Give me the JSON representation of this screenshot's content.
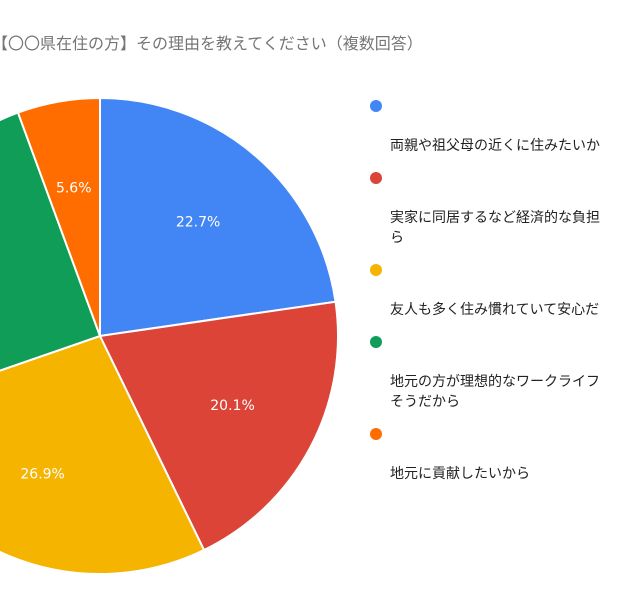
{
  "chart_data": {
    "type": "pie",
    "title": "【〇〇県在住の方】その理由を教えてください（複数回答）",
    "slices": [
      {
        "name": "両親や祖父母の近くに住みたいから",
        "value": 22.7,
        "color": "#4285F4",
        "label": "22.7%"
      },
      {
        "name": "実家に同居するなど経済的な負担が少ないから",
        "value": 20.1,
        "color": "#DB4437",
        "label": "20.1%"
      },
      {
        "name": "友人も多く住み慣れていて安心だから",
        "value": 26.9,
        "color": "#F4B400",
        "label": "26.9%"
      },
      {
        "name": "地元の方が理想的なワークライフバランスが実現できそうだから",
        "value": 24.7,
        "color": "#0F9D58",
        "label": ""
      },
      {
        "name": "地元に貢献したいから",
        "value": 5.6,
        "color": "#FF6D01",
        "label": "5.6%"
      }
    ],
    "legend_position": "right"
  },
  "legend": {
    "items": [
      {
        "text": "両親や祖父母の近くに住みたいか",
        "color": "#4285F4"
      },
      {
        "text": "実家に同居するなど経済的な負担\nら",
        "color": "#DB4437"
      },
      {
        "text": "友人も多く住み慣れていて安心だ",
        "color": "#F4B400"
      },
      {
        "text": "地元の方が理想的なワークライフ\nそうだから",
        "color": "#0F9D58"
      },
      {
        "text": "地元に貢献したいから",
        "color": "#FF6D01"
      }
    ]
  }
}
